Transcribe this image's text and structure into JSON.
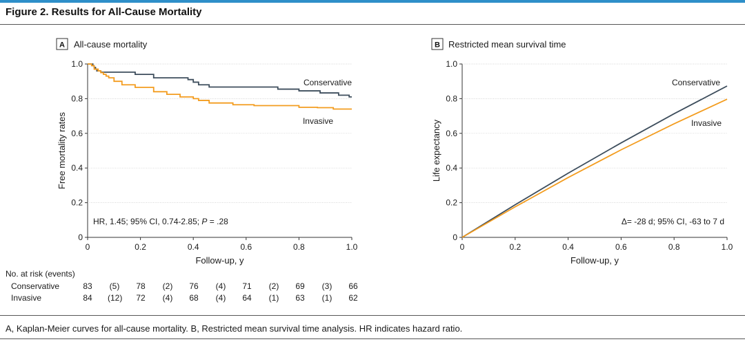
{
  "figure_title": "Figure 2. Results for All-Cause Mortality",
  "caption": "A, Kaplan-Meier curves for all-cause mortality. B, Restricted mean survival time analysis. HR indicates hazard ratio.",
  "colors": {
    "topbar": "#2e8fc9",
    "conservative": "#3d4d5c",
    "invasive": "#f39c1e",
    "axis": "#333333"
  },
  "risk_table": {
    "title": "No. at risk (events)",
    "rows": [
      {
        "label": "Conservative",
        "values": [
          "83",
          "(5)",
          "78",
          "(2)",
          "76",
          "(4)",
          "71",
          "(2)",
          "69",
          "(3)",
          "66"
        ]
      },
      {
        "label": "Invasive",
        "values": [
          "84",
          "(12)",
          "72",
          "(4)",
          "68",
          "(4)",
          "64",
          "(1)",
          "63",
          "(1)",
          "62"
        ]
      }
    ]
  },
  "chart_data": [
    {
      "panel": "A",
      "type": "line",
      "step": true,
      "title": "All-cause mortality",
      "xlabel": "Follow-up, y",
      "ylabel": "Free mortality rates",
      "xlim": [
        0,
        1.0
      ],
      "ylim": [
        0,
        1.0
      ],
      "xticks": [
        "0",
        "0.2",
        "0.4",
        "0.6",
        "0.8",
        "1.0"
      ],
      "yticks": [
        "0",
        "0.2",
        "0.4",
        "0.6",
        "0.8",
        "1.0"
      ],
      "annotation_parts": [
        "HR, 1.45; 95% CI, 0.74-2.85; ",
        "P",
        " = .28"
      ],
      "series": [
        {
          "name": "Conservative",
          "x": [
            0,
            0.02,
            0.025,
            0.03,
            0.035,
            0.04,
            0.05,
            0.18,
            0.25,
            0.38,
            0.4,
            0.42,
            0.46,
            0.72,
            0.8,
            0.88,
            0.95,
            0.99,
            1.0
          ],
          "y": [
            1.0,
            0.99,
            0.98,
            0.97,
            0.96,
            0.96,
            0.953,
            0.94,
            0.92,
            0.91,
            0.895,
            0.88,
            0.867,
            0.855,
            0.845,
            0.833,
            0.82,
            0.81,
            0.81
          ]
        },
        {
          "name": "Invasive",
          "x": [
            0,
            0.015,
            0.025,
            0.04,
            0.05,
            0.06,
            0.07,
            0.08,
            0.1,
            0.13,
            0.18,
            0.25,
            0.3,
            0.35,
            0.4,
            0.42,
            0.46,
            0.55,
            0.6,
            0.63,
            0.8,
            0.87,
            0.93,
            1.0
          ],
          "y": [
            1.0,
            0.99,
            0.97,
            0.96,
            0.95,
            0.94,
            0.93,
            0.92,
            0.9,
            0.88,
            0.865,
            0.84,
            0.825,
            0.81,
            0.8,
            0.79,
            0.775,
            0.765,
            0.765,
            0.76,
            0.75,
            0.748,
            0.74,
            0.74
          ]
        }
      ],
      "series_labels": [
        "Conservative",
        "Invasive"
      ]
    },
    {
      "panel": "B",
      "type": "line",
      "title": "Restricted mean survival time",
      "xlabel": "Follow-up, y",
      "ylabel": "Life expectancy",
      "xlim": [
        0,
        1.0
      ],
      "ylim": [
        0,
        1.0
      ],
      "xticks": [
        "0",
        "0.2",
        "0.4",
        "0.6",
        "0.8",
        "1.0"
      ],
      "yticks": [
        "0",
        "0.2",
        "0.4",
        "0.6",
        "0.8",
        "1.0"
      ],
      "annotation": "Δ= -28 d; 95% CI, -63 to 7 d",
      "series": [
        {
          "name": "Conservative",
          "x": [
            0,
            0.2,
            0.4,
            0.6,
            0.8,
            1.0
          ],
          "y": [
            0,
            0.188,
            0.37,
            0.545,
            0.713,
            0.873
          ]
        },
        {
          "name": "Invasive",
          "x": [
            0,
            0.2,
            0.4,
            0.6,
            0.8,
            1.0
          ],
          "y": [
            0,
            0.176,
            0.345,
            0.505,
            0.655,
            0.797
          ]
        }
      ],
      "series_labels": [
        "Conservative",
        "Invasive"
      ]
    }
  ]
}
